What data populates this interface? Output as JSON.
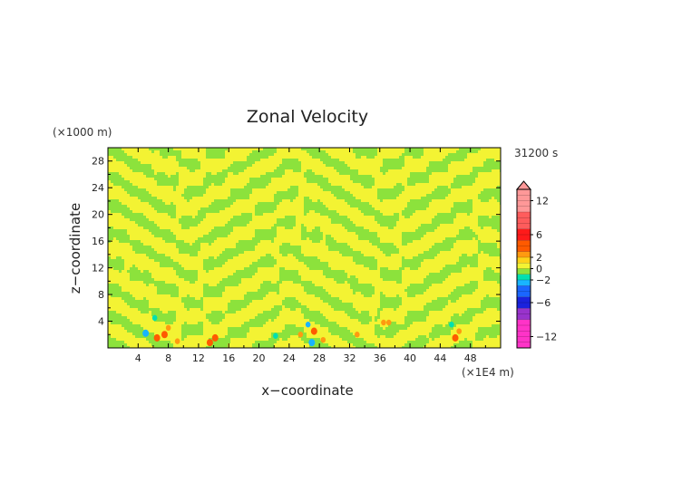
{
  "chart_data": {
    "type": "heatmap",
    "title": "Zonal Velocity",
    "xlabel": "x−coordinate",
    "ylabel": "z−coordinate",
    "x_unit": "(×1E4 m)",
    "y_unit": "(×1000 m)",
    "time_label": "31200 s",
    "xlim": [
      0,
      52
    ],
    "ylim": [
      0,
      30
    ],
    "x_ticks": [
      4,
      8,
      12,
      16,
      20,
      24,
      28,
      32,
      36,
      40,
      44,
      48
    ],
    "y_ticks": [
      4,
      8,
      12,
      16,
      20,
      24,
      28
    ],
    "x_tick_labels": [
      "4",
      "8",
      "12",
      "16",
      "20",
      "24",
      "28",
      "32",
      "36",
      "40",
      "44",
      "48"
    ],
    "y_tick_labels": [
      "4",
      "8",
      "12",
      "16",
      "20",
      "24",
      "28"
    ],
    "colorbar": {
      "range": [
        -14,
        14
      ],
      "ticks": [
        12,
        6,
        2,
        0,
        -2,
        -6,
        -12
      ],
      "tick_labels": [
        "12",
        "6",
        "2",
        "0",
        "−2",
        "−6",
        "−12"
      ],
      "extend": "max",
      "levels": [
        {
          "from": -14,
          "to": -9,
          "color": "#ff33c8"
        },
        {
          "from": -9,
          "to": -7,
          "color": "#9933cc"
        },
        {
          "from": -7,
          "to": -5,
          "color": "#1a22dd"
        },
        {
          "from": -5,
          "to": -3,
          "color": "#1a66ff"
        },
        {
          "from": -3,
          "to": -2,
          "color": "#19b4ff"
        },
        {
          "from": -2,
          "to": -1,
          "color": "#00e0b0"
        },
        {
          "from": -1,
          "to": 0,
          "color": "#8ce23c"
        },
        {
          "from": 0,
          "to": 1,
          "color": "#f3f333"
        },
        {
          "from": 1,
          "to": 2,
          "color": "#ffd21a"
        },
        {
          "from": 2,
          "to": 3,
          "color": "#ff9a10"
        },
        {
          "from": 3,
          "to": 5,
          "color": "#ff5a00"
        },
        {
          "from": 5,
          "to": 7,
          "color": "#ff1a1a"
        },
        {
          "from": 7,
          "to": 10,
          "color": "#ff5c5c"
        },
        {
          "from": 10,
          "to": 14,
          "color": "#ff9898"
        }
      ]
    },
    "field_colors": {
      "base": "#f3f333",
      "band": "#8ce23c"
    },
    "anomalies": [
      {
        "x": 5.0,
        "z": 2.2,
        "value": -3
      },
      {
        "x": 6.2,
        "z": 4.5,
        "value": -2
      },
      {
        "x": 6.5,
        "z": 1.5,
        "value": 4
      },
      {
        "x": 7.5,
        "z": 2.0,
        "value": 3
      },
      {
        "x": 8.0,
        "z": 3.0,
        "value": 2.5
      },
      {
        "x": 9.2,
        "z": 1.0,
        "value": 2.5
      },
      {
        "x": 13.5,
        "z": 0.8,
        "value": 3
      },
      {
        "x": 14.2,
        "z": 1.5,
        "value": 3
      },
      {
        "x": 22.2,
        "z": 1.8,
        "value": -2
      },
      {
        "x": 25.5,
        "z": 2.0,
        "value": 2.5
      },
      {
        "x": 26.5,
        "z": 3.5,
        "value": -2.5
      },
      {
        "x": 27.0,
        "z": 0.8,
        "value": -3
      },
      {
        "x": 27.3,
        "z": 2.5,
        "value": 3
      },
      {
        "x": 28.5,
        "z": 1.2,
        "value": 2.5
      },
      {
        "x": 33.0,
        "z": 2.0,
        "value": 2
      },
      {
        "x": 36.5,
        "z": 3.8,
        "value": 2
      },
      {
        "x": 37.2,
        "z": 3.8,
        "value": 2
      },
      {
        "x": 45.5,
        "z": 3.5,
        "value": -2
      },
      {
        "x": 46.0,
        "z": 1.5,
        "value": 3
      },
      {
        "x": 46.5,
        "z": 2.5,
        "value": 2
      }
    ]
  }
}
